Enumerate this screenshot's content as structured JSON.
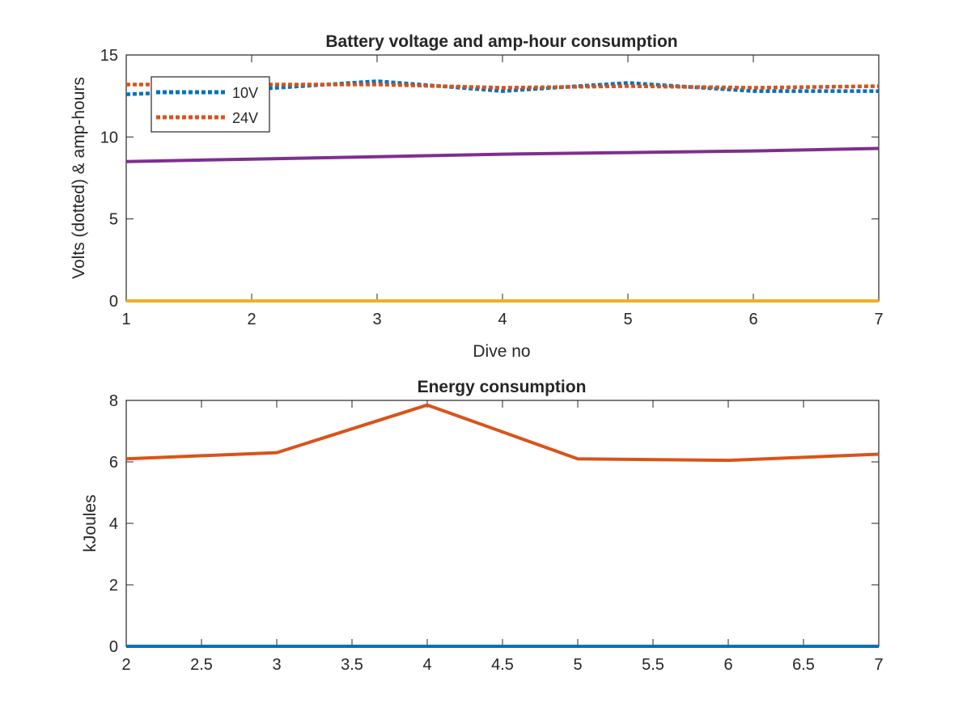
{
  "chart_data": [
    {
      "type": "line",
      "title": "Battery voltage and amp-hour consumption",
      "xlabel": "Dive no",
      "ylabel": "Volts (dotted) & amp-hours",
      "xlim": [
        1,
        7
      ],
      "ylim": [
        0,
        15
      ],
      "x_ticks": [
        "1",
        "2",
        "3",
        "4",
        "5",
        "6",
        "7"
      ],
      "y_ticks": [
        "0",
        "5",
        "10",
        "15"
      ],
      "grid": false,
      "legend_position": "top-left",
      "series": [
        {
          "name": "10V",
          "style": "dotted",
          "color": "#0072BD",
          "x": [
            1,
            2,
            3,
            4,
            5,
            6,
            7
          ],
          "values": [
            12.6,
            12.9,
            13.4,
            12.8,
            13.3,
            12.8,
            12.8
          ]
        },
        {
          "name": "24V",
          "style": "dotted",
          "color": "#D95319",
          "x": [
            1,
            2,
            3,
            4,
            5,
            6,
            7
          ],
          "values": [
            13.2,
            13.2,
            13.2,
            13.0,
            13.1,
            13.0,
            13.1
          ]
        },
        {
          "style": "solid",
          "color": "#EDB120",
          "x": [
            1,
            2,
            3,
            4,
            5,
            6,
            7
          ],
          "values": [
            0,
            0,
            0,
            0,
            0,
            0,
            0
          ]
        },
        {
          "style": "solid",
          "color": "#7E2F8E",
          "x": [
            1,
            2,
            3,
            4,
            5,
            6,
            7
          ],
          "values": [
            8.5,
            8.65,
            8.8,
            8.95,
            9.05,
            9.15,
            9.3
          ]
        }
      ]
    },
    {
      "type": "line",
      "title": "Energy consumption",
      "xlabel": "",
      "ylabel": "kJoules",
      "xlim": [
        2,
        7
      ],
      "ylim": [
        0,
        8
      ],
      "x_ticks": [
        "2",
        "2.5",
        "3",
        "3.5",
        "4",
        "4.5",
        "5",
        "5.5",
        "6",
        "6.5",
        "7"
      ],
      "y_ticks": [
        "0",
        "2",
        "4",
        "6",
        "8"
      ],
      "grid": false,
      "series": [
        {
          "style": "solid",
          "color": "#0072BD",
          "x": [
            2,
            3,
            4,
            5,
            6,
            7
          ],
          "values": [
            0,
            0,
            0,
            0,
            0,
            0
          ]
        },
        {
          "style": "solid",
          "color": "#D95319",
          "x": [
            2,
            3,
            4,
            5,
            6,
            7
          ],
          "values": [
            6.1,
            6.3,
            7.85,
            6.1,
            6.05,
            6.25
          ]
        }
      ]
    }
  ]
}
